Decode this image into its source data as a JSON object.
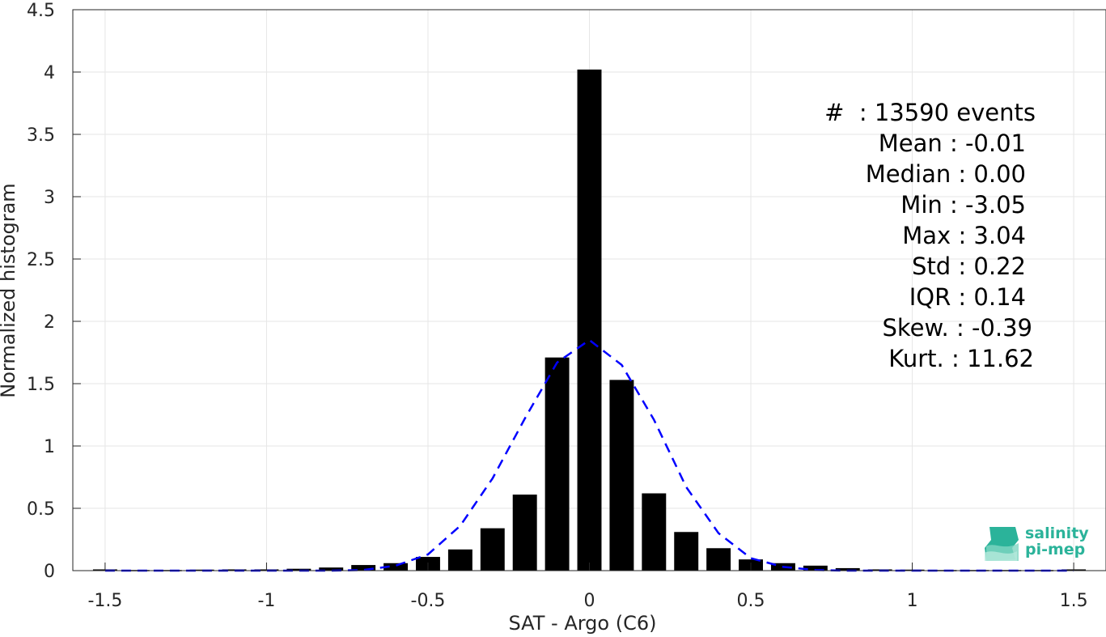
{
  "chart_data": {
    "type": "bar",
    "xlabel": "SAT - Argo (C6)",
    "ylabel": "Normalized histogram",
    "xlim": [
      -1.6,
      1.6
    ],
    "ylim": [
      0,
      4.5
    ],
    "xticks": [
      "-1.5",
      "-1",
      "-0.5",
      "0",
      "0.5",
      "1",
      "1.5"
    ],
    "xtick_values": [
      -1.5,
      -1,
      -0.5,
      0,
      0.5,
      1,
      1.5
    ],
    "yticks": [
      "0",
      "0.5",
      "1",
      "1.5",
      "2",
      "2.5",
      "3",
      "3.5",
      "4",
      "4.5"
    ],
    "ytick_values": [
      0,
      0.5,
      1,
      1.5,
      2,
      2.5,
      3,
      3.5,
      4,
      4.5
    ],
    "grid": true,
    "bar_width": 0.075,
    "bars": {
      "x": [
        -1.5,
        -1.4,
        -1.3,
        -1.2,
        -1.1,
        -1.0,
        -0.9,
        -0.8,
        -0.7,
        -0.6,
        -0.5,
        -0.4,
        -0.3,
        -0.2,
        -0.1,
        0.0,
        0.1,
        0.2,
        0.3,
        0.4,
        0.5,
        0.6,
        0.7,
        0.8,
        0.9,
        1.0,
        1.1,
        1.2,
        1.3,
        1.4,
        1.5
      ],
      "values": [
        0.01,
        0.005,
        0.005,
        0.008,
        0.01,
        0.01,
        0.015,
        0.025,
        0.045,
        0.06,
        0.11,
        0.17,
        0.34,
        0.61,
        1.71,
        4.02,
        1.53,
        0.62,
        0.31,
        0.18,
        0.09,
        0.06,
        0.04,
        0.02,
        0.01,
        0.008,
        0.005,
        0.005,
        0.005,
        0.005,
        0.01
      ],
      "color": "#000000"
    },
    "fit_curve": {
      "style": "dashed",
      "color": "#0000ff",
      "x": [
        -1.5,
        -1.4,
        -1.3,
        -1.2,
        -1.1,
        -1.0,
        -0.9,
        -0.8,
        -0.7,
        -0.6,
        -0.5,
        -0.4,
        -0.3,
        -0.2,
        -0.1,
        0.0,
        0.1,
        0.2,
        0.3,
        0.4,
        0.5,
        0.6,
        0.7,
        0.8,
        0.9,
        1.0,
        1.1,
        1.2,
        1.3,
        1.4,
        1.5
      ],
      "y": [
        0,
        0,
        0,
        0,
        0,
        0,
        0,
        0,
        0.005,
        0.04,
        0.13,
        0.36,
        0.74,
        1.22,
        1.67,
        1.85,
        1.65,
        1.21,
        0.67,
        0.3,
        0.1,
        0.03,
        0.005,
        0,
        0,
        0,
        0,
        0,
        0,
        0,
        0
      ]
    }
  },
  "stats": [
    "#  : 13590 events",
    "Mean : -0.01",
    "Median : 0.00",
    "Min : -3.05",
    "Max : 3.04",
    "Std : 0.22",
    "IQR : 0.14",
    "Skew. : -0.39",
    "Kurt. : 11.62"
  ],
  "logo": {
    "line1": "salinity",
    "line2": "pi-mep",
    "color": "#2bb39a"
  }
}
